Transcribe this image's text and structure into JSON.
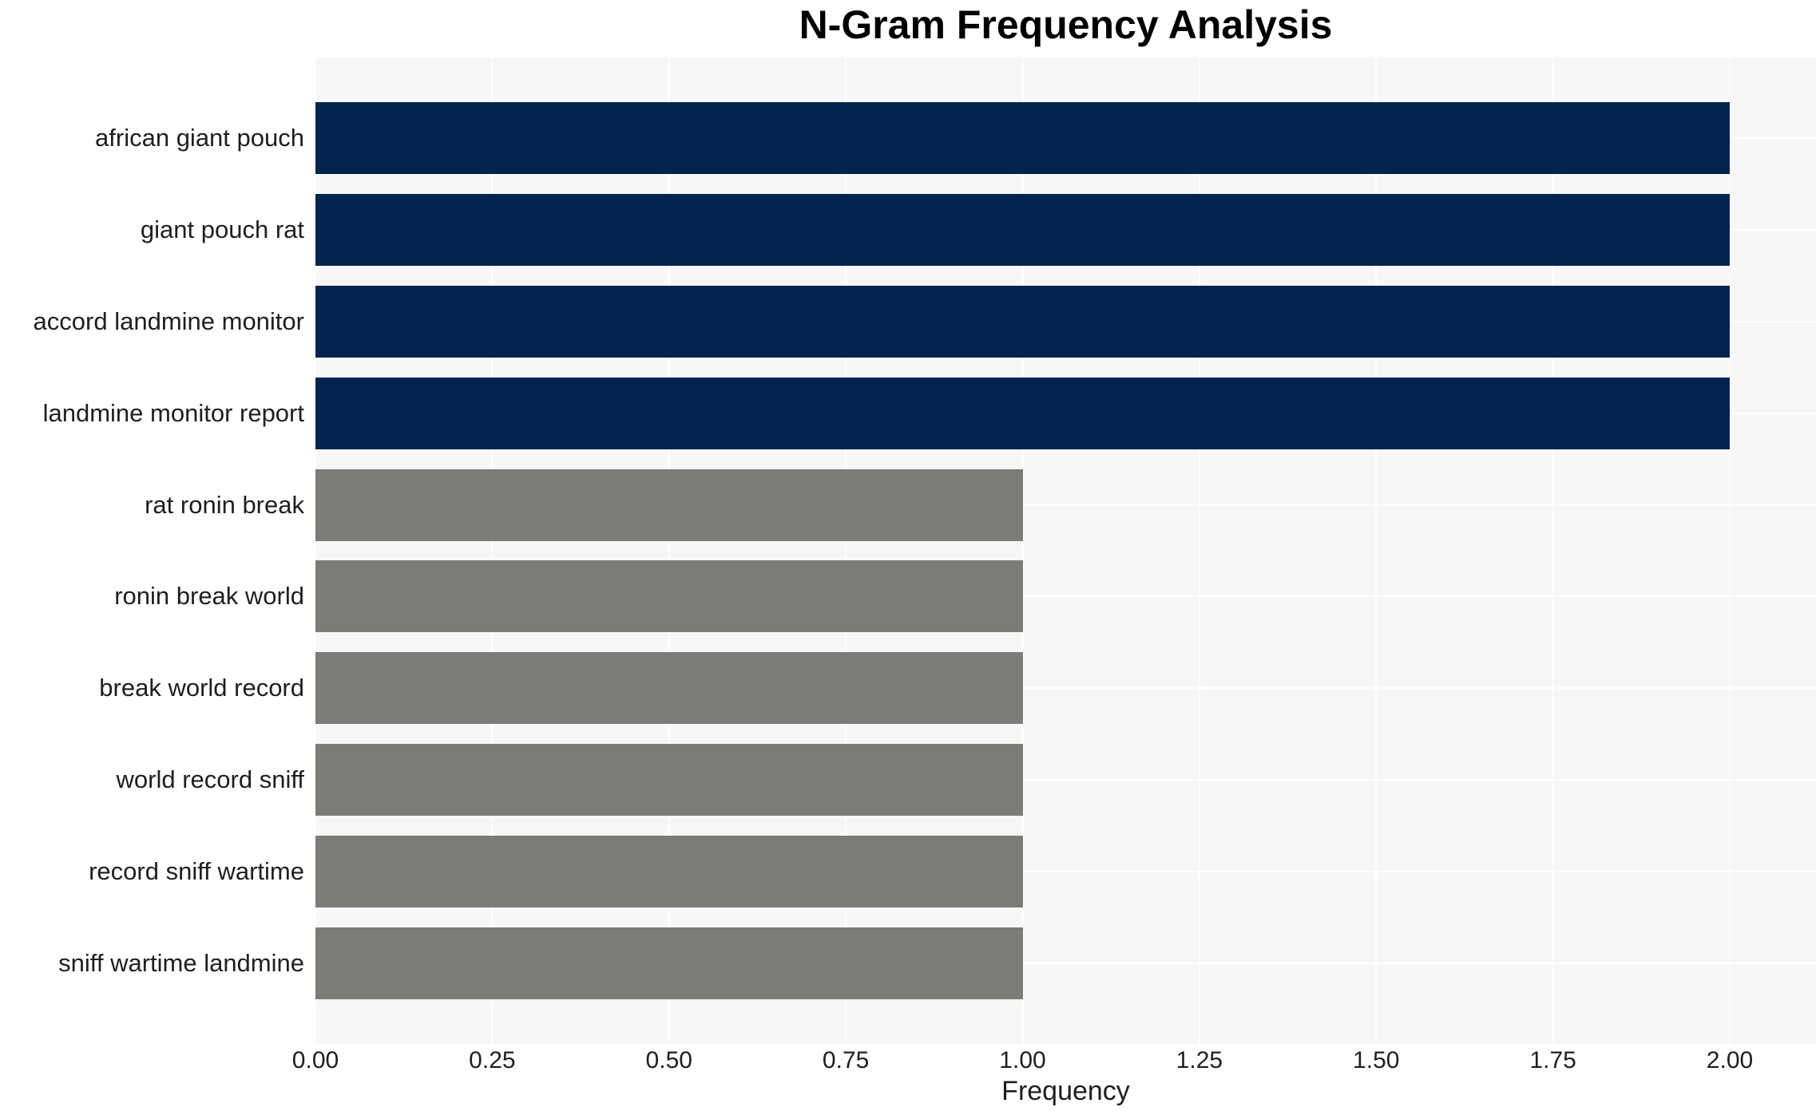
{
  "chart_data": {
    "type": "bar",
    "orientation": "horizontal",
    "title": "N-Gram Frequency Analysis",
    "xlabel": "Frequency",
    "ylabel": "",
    "categories": [
      "african giant pouch",
      "giant pouch rat",
      "accord landmine monitor",
      "landmine monitor report",
      "rat ronin break",
      "ronin break world",
      "break world record",
      "world record sniff",
      "record sniff wartime",
      "sniff wartime landmine"
    ],
    "values": [
      2,
      2,
      2,
      2,
      1,
      1,
      1,
      1,
      1,
      1
    ],
    "bar_colors": [
      "#02234d",
      "#02234d",
      "#02234d",
      "#02234d",
      "#7b7b77",
      "#7b7b77",
      "#7b7b77",
      "#7b7b77",
      "#7b7b77",
      "#7b7b77"
    ],
    "xlim": [
      0,
      2.0
    ],
    "xticks": [
      0,
      0.25,
      0.5,
      0.75,
      1.0,
      1.25,
      1.5,
      1.75,
      2.0
    ],
    "xtick_labels": [
      "0.00",
      "0.25",
      "0.50",
      "0.75",
      "1.00",
      "1.25",
      "1.50",
      "1.75",
      "2.00"
    ],
    "grid": true,
    "legend_position": "none",
    "colors": {
      "highlight_bar": "#02234d",
      "regular_bar": "#7b7b77",
      "plot_background": "#f7f7f7",
      "gridline": "#ffffff",
      "title_text": "#000000",
      "label_text": "#1f1f1f"
    }
  }
}
